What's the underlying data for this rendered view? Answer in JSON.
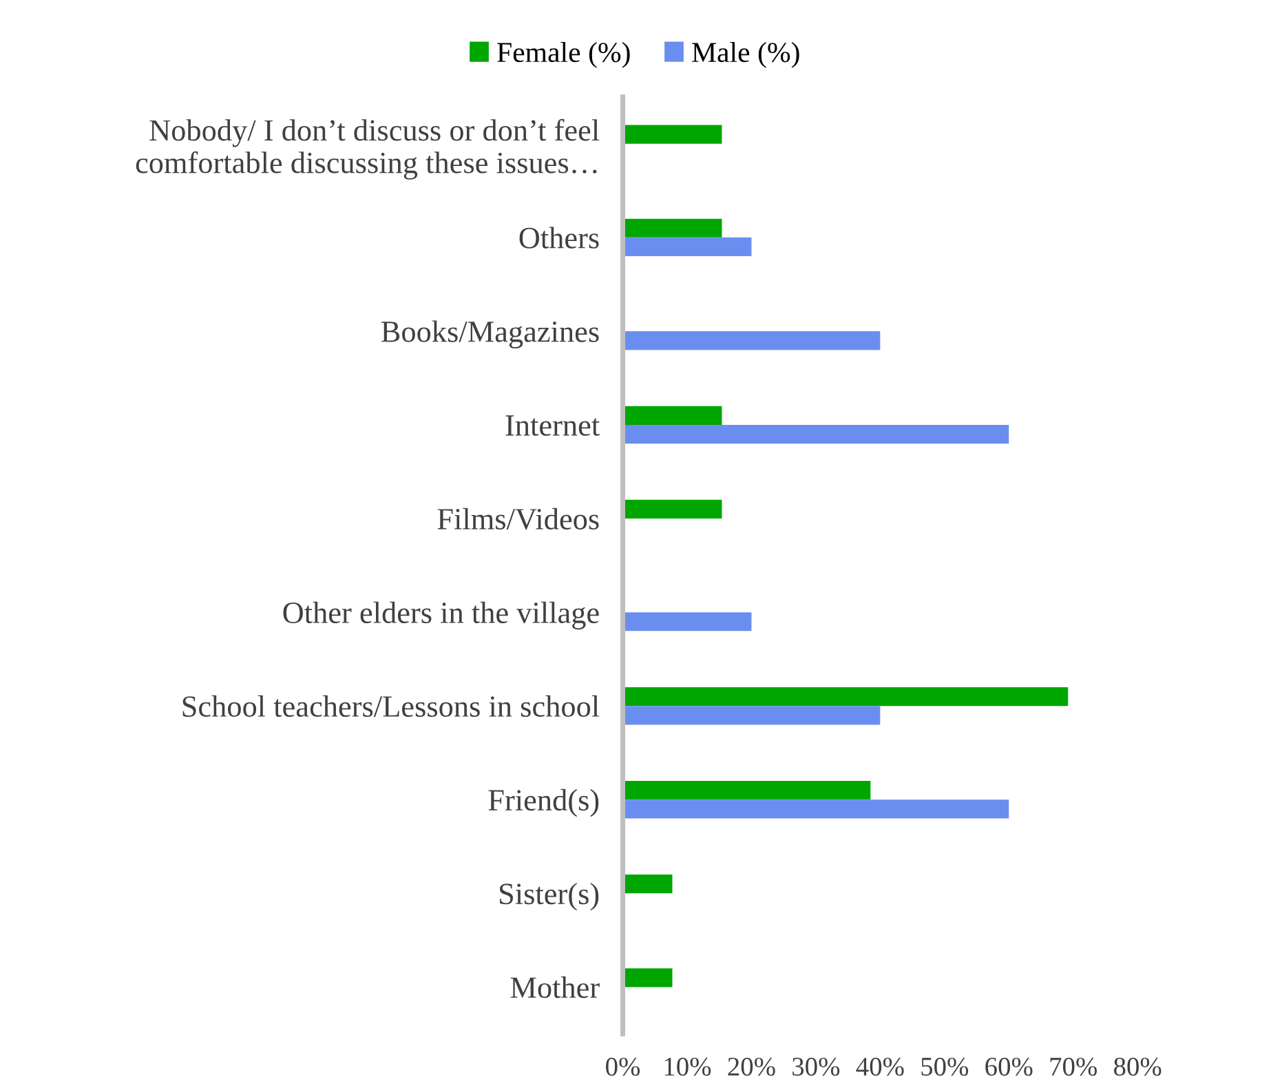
{
  "chart_data": {
    "type": "bar",
    "orientation": "horizontal",
    "categories": [
      "Nobody/ I don’t discuss or don’t feel\ncomfortable discussing these issues…",
      "Others",
      "Books/Magazines",
      "Internet",
      "Films/Videos",
      "Other elders in the village",
      "School teachers/Lessons in school",
      "Friend(s)",
      "Sister(s)",
      "Mother"
    ],
    "series": [
      {
        "name": "Female (%)",
        "color": "#00a600",
        "values": [
          15.4,
          15.4,
          null,
          15.4,
          15.4,
          null,
          69.2,
          38.5,
          7.7,
          7.7
        ]
      },
      {
        "name": "Male (%)",
        "color": "#6a8ef0",
        "values": [
          null,
          20,
          40,
          60,
          null,
          20,
          40,
          60,
          null,
          null
        ]
      }
    ],
    "xlim": [
      0,
      80
    ],
    "xticks": [
      {
        "value": 0,
        "label": "0%"
      },
      {
        "value": 10,
        "label": "10%"
      },
      {
        "value": 20,
        "label": "20%"
      },
      {
        "value": 30,
        "label": "30%"
      },
      {
        "value": 40,
        "label": "40%"
      },
      {
        "value": 50,
        "label": "50%"
      },
      {
        "value": 60,
        "label": "60%"
      },
      {
        "value": 70,
        "label": "70%"
      },
      {
        "value": 80,
        "label": "80%"
      }
    ],
    "grid": false,
    "legend": "top"
  }
}
